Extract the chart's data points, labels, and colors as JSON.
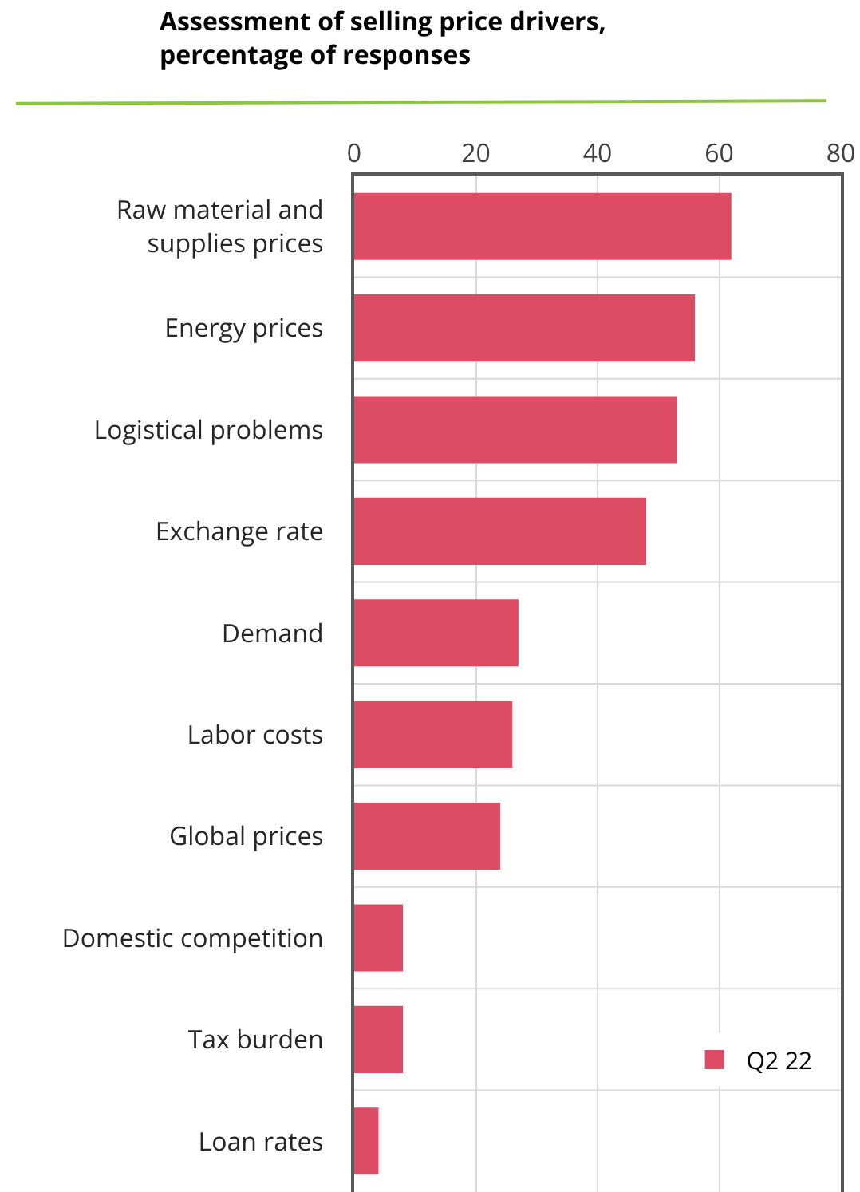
{
  "chart_data": {
    "type": "bar",
    "orientation": "horizontal",
    "title": "Assessment of selling price drivers,\npercentage of responses",
    "categories": [
      "Raw material and supplies prices",
      "Energy prices",
      "Logistical problems",
      "Exchange rate",
      "Demand",
      "Labor costs",
      "Global prices",
      "Domestic competition",
      "Tax burden",
      "Loan rates"
    ],
    "series": [
      {
        "name": "Q2 22",
        "color": "#dc4c64",
        "values": [
          62,
          56,
          53,
          48,
          27,
          26,
          24,
          8,
          8,
          4
        ]
      }
    ],
    "xlim": [
      0,
      80
    ],
    "xticks": [
      0,
      20,
      40,
      60,
      80
    ],
    "grid": true,
    "legend": "bottom right"
  }
}
